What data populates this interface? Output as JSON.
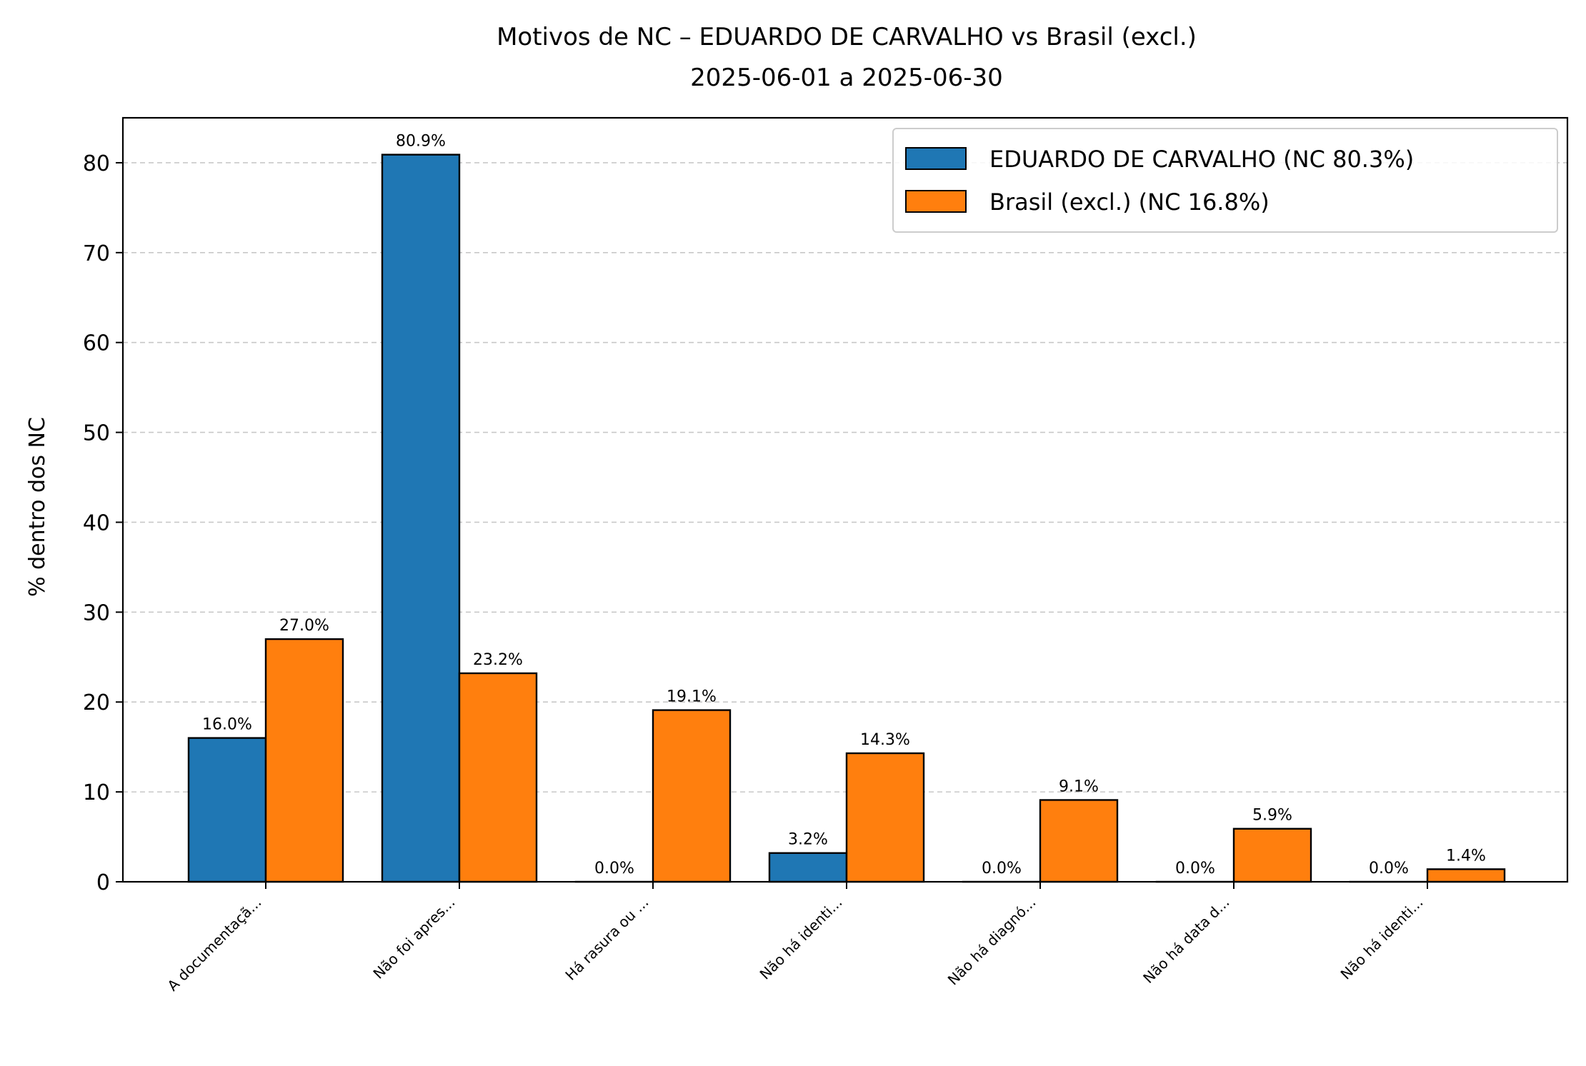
{
  "chart_data": {
    "type": "bar",
    "title": "Motivos de NC – EDUARDO DE CARVALHO vs Brasil (excl.)",
    "subtitle": "2025-06-01 a 2025-06-30",
    "xlabel": "",
    "ylabel": "% dentro dos NC",
    "ylim": [
      0,
      85
    ],
    "yticks": [
      0,
      10,
      20,
      30,
      40,
      50,
      60,
      70,
      80
    ],
    "grid": "y dashed",
    "legend_position": "top-right",
    "categories": [
      "A documentaçã...",
      "Não foi apres...",
      "Há rasura ou ...",
      "Não há identi...",
      "Não há diagnó...",
      "Não há data d...",
      "Não há identi..."
    ],
    "series": [
      {
        "name": "EDUARDO DE CARVALHO (NC 80.3%)",
        "color": "#1f77b4",
        "values": [
          16.0,
          80.9,
          0.0,
          3.2,
          0.0,
          0.0,
          0.0
        ],
        "labels": [
          "16.0%",
          "80.9%",
          "0.0%",
          "3.2%",
          "0.0%",
          "0.0%",
          "0.0%"
        ]
      },
      {
        "name": "Brasil (excl.) (NC 16.8%)",
        "color": "#ff7f0e",
        "values": [
          27.0,
          23.2,
          19.1,
          14.3,
          9.1,
          5.9,
          1.4
        ],
        "labels": [
          "27.0%",
          "23.2%",
          "19.1%",
          "14.3%",
          "9.1%",
          "5.9%",
          "1.4%"
        ]
      }
    ]
  }
}
